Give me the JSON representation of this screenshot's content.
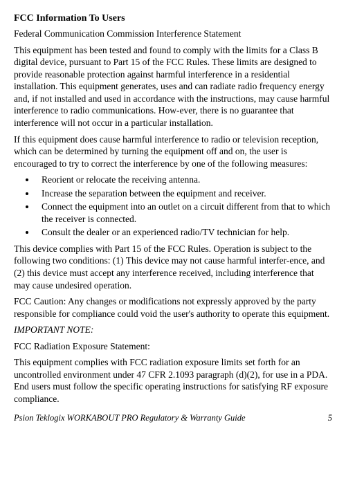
{
  "heading": "FCC Information To Users",
  "subheading": "Federal Communication Commission Interference Statement",
  "para1": "This equipment has been tested and found to comply with the limits for a Class B digital device, pursuant to Part 15 of the FCC Rules. These limits are designed to provide reasonable protection against harmful interference in a residential installation. This equipment generates, uses and can radiate radio frequency energy and, if not installed and used in accordance with the instructions, may cause harmful interference to radio communications. How-ever, there is no guarantee that interference will not occur in a particular installation.",
  "para2": "If this equipment does cause harmful interference to radio or television reception, which can be determined by turning the equipment off and on, the user is encouraged to try to correct the interference by one of the following measures:",
  "bullets": [
    "Reorient or relocate the receiving antenna.",
    "Increase the separation between the equipment and receiver.",
    "Connect the equipment into an outlet on a circuit different from that to which the receiver is connected.",
    "Consult the dealer or an experienced radio/TV technician for help."
  ],
  "para3": "This device complies with Part 15 of the FCC Rules. Operation is subject to the following two conditions: (1) This device may not cause harmful interfer-ence, and (2) this device must accept any interference received, including interference that may cause undesired operation.",
  "para4": "FCC Caution: Any changes or modifications not expressly approved by the party responsible for compliance could void the user's authority to operate this equipment.",
  "note_label": "IMPORTANT NOTE:",
  "para5": "FCC Radiation Exposure Statement:",
  "para6": "This equipment complies with FCC radiation exposure limits set forth for an uncontrolled environment under 47 CFR 2.1093 paragraph (d)(2), for use in a PDA. End users must follow the specific operating instructions for satisfying RF exposure compliance.",
  "footer_title": "Psion Teklogix WORKABOUT PRO Regulatory & Warranty Guide",
  "footer_page": "5"
}
